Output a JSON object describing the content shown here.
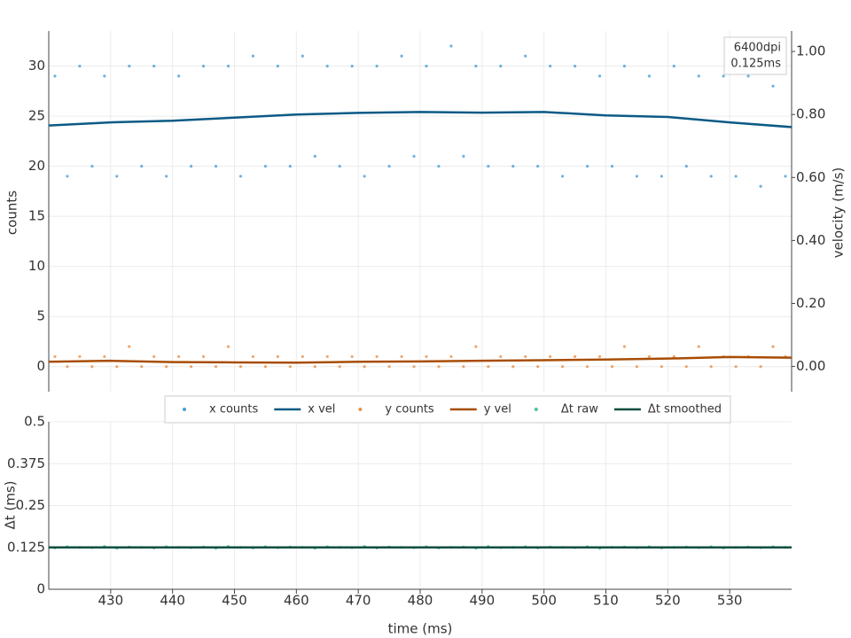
{
  "chart_data": [
    {
      "type": "scatter",
      "ylabel": "counts",
      "y2label": "velocity (m/s)",
      "xlim": [
        420,
        540
      ],
      "xticks": [
        430,
        440,
        450,
        460,
        470,
        480,
        490,
        500,
        510,
        520,
        530
      ],
      "ylim": [
        -2.5,
        33.5
      ],
      "yticks": [
        0,
        5,
        10,
        15,
        20,
        25,
        30
      ],
      "y2lim": [
        -0.08,
        1.065
      ],
      "y2ticks": [
        {
          "value": 0,
          "label": "0.00"
        },
        {
          "value": 0.2,
          "label": "0.20"
        },
        {
          "value": 0.4,
          "label": "0.40"
        },
        {
          "value": 0.6,
          "label": "0.60"
        },
        {
          "value": 0.8,
          "label": "0.80"
        },
        {
          "value": 1,
          "label": "1.00"
        }
      ],
      "grid": true,
      "legend": "bottom",
      "annotations": [
        "6400dpi",
        "0.125ms"
      ],
      "series": [
        {
          "name": "x counts",
          "kind": "markers",
          "color": "#4a9fd6",
          "x": [
            421,
            423,
            425,
            427,
            429,
            431,
            433,
            435,
            437,
            439,
            441,
            443,
            445,
            447,
            449,
            451,
            453,
            455,
            457,
            459,
            461,
            463,
            465,
            467,
            469,
            471,
            473,
            475,
            477,
            479,
            481,
            483,
            485,
            487,
            489,
            491,
            493,
            495,
            497,
            499,
            501,
            503,
            505,
            507,
            509,
            511,
            513,
            515,
            517,
            519,
            521,
            523,
            525,
            527,
            529,
            531,
            533,
            535,
            537,
            539
          ],
          "values": [
            29,
            19,
            30,
            20,
            29,
            19,
            30,
            20,
            30,
            19,
            29,
            20,
            30,
            20,
            30,
            19,
            31,
            20,
            30,
            20,
            31,
            21,
            30,
            20,
            30,
            19,
            30,
            20,
            31,
            21,
            30,
            20,
            32,
            21,
            30,
            20,
            30,
            20,
            31,
            20,
            30,
            19,
            30,
            20,
            29,
            20,
            30,
            19,
            29,
            19,
            30,
            20,
            29,
            19,
            29,
            19,
            29,
            18,
            28,
            19
          ]
        },
        {
          "name": "x vel",
          "kind": "lines",
          "color": "#0b5a85",
          "axis": "y2",
          "x": [
            420,
            430,
            440,
            450,
            460,
            470,
            480,
            490,
            500,
            510,
            520,
            530,
            540
          ],
          "values": [
            0.765,
            0.775,
            0.78,
            0.79,
            0.8,
            0.805,
            0.808,
            0.806,
            0.808,
            0.797,
            0.792,
            0.775,
            0.76
          ]
        },
        {
          "name": "y counts",
          "kind": "markers",
          "color": "#e8914a",
          "x": [
            421,
            423,
            425,
            427,
            429,
            431,
            433,
            435,
            437,
            439,
            441,
            443,
            445,
            447,
            449,
            451,
            453,
            455,
            457,
            459,
            461,
            463,
            465,
            467,
            469,
            471,
            473,
            475,
            477,
            479,
            481,
            483,
            485,
            487,
            489,
            491,
            493,
            495,
            497,
            499,
            501,
            503,
            505,
            507,
            509,
            511,
            513,
            515,
            517,
            519,
            521,
            523,
            525,
            527,
            529,
            531,
            533,
            535,
            537,
            539
          ],
          "values": [
            1,
            0,
            1,
            0,
            1,
            0,
            2,
            0,
            1,
            0,
            1,
            0,
            1,
            0,
            2,
            0,
            1,
            0,
            1,
            0,
            1,
            0,
            1,
            0,
            1,
            0,
            1,
            0,
            1,
            0,
            1,
            0,
            1,
            0,
            2,
            0,
            1,
            0,
            1,
            0,
            1,
            0,
            1,
            0,
            1,
            0,
            2,
            0,
            1,
            0,
            1,
            0,
            2,
            0,
            1,
            0,
            1,
            0,
            2,
            1
          ]
        },
        {
          "name": "y vel",
          "kind": "lines",
          "color": "#a84d05",
          "axis": "y2",
          "x": [
            420,
            430,
            440,
            450,
            460,
            470,
            480,
            490,
            500,
            510,
            520,
            530,
            540
          ],
          "values": [
            0.015,
            0.018,
            0.014,
            0.013,
            0.012,
            0.015,
            0.016,
            0.018,
            0.02,
            0.022,
            0.025,
            0.03,
            0.028
          ]
        }
      ]
    },
    {
      "type": "scatter",
      "xlabel": "time (ms)",
      "ylabel": "Δt (ms)",
      "xlim": [
        420,
        540
      ],
      "xticks": [
        430,
        440,
        450,
        460,
        470,
        480,
        490,
        500,
        510,
        520,
        530
      ],
      "ylim": [
        0,
        0.5
      ],
      "yticks": [
        0,
        0.125,
        0.25,
        0.375,
        0.5
      ],
      "grid": true,
      "series": [
        {
          "name": "Δt raw",
          "kind": "markers",
          "color": "#4fc49a",
          "x": [
            421,
            423,
            425,
            427,
            429,
            431,
            433,
            435,
            437,
            439,
            441,
            443,
            445,
            447,
            449,
            451,
            453,
            455,
            457,
            459,
            461,
            463,
            465,
            467,
            469,
            471,
            473,
            475,
            477,
            479,
            481,
            483,
            485,
            487,
            489,
            491,
            493,
            495,
            497,
            499,
            501,
            503,
            505,
            507,
            509,
            511,
            513,
            515,
            517,
            519,
            521,
            523,
            525,
            527,
            529,
            531,
            533,
            535,
            537,
            539
          ],
          "values": [
            0.123,
            0.127,
            0.125,
            0.124,
            0.128,
            0.122,
            0.126,
            0.125,
            0.123,
            0.127,
            0.125,
            0.124,
            0.126,
            0.122,
            0.128,
            0.125,
            0.123,
            0.127,
            0.124,
            0.126,
            0.125,
            0.122,
            0.127,
            0.125,
            0.124,
            0.128,
            0.123,
            0.126,
            0.125,
            0.124,
            0.127,
            0.123,
            0.125,
            0.126,
            0.122,
            0.128,
            0.124,
            0.125,
            0.127,
            0.123,
            0.126,
            0.125,
            0.124,
            0.127,
            0.122,
            0.125,
            0.126,
            0.124,
            0.127,
            0.123,
            0.125,
            0.126,
            0.124,
            0.127,
            0.123,
            0.125,
            0.126,
            0.124,
            0.127,
            0.125
          ]
        },
        {
          "name": "Δt smoothed",
          "kind": "lines",
          "color": "#0b4f3e",
          "x": [
            420,
            540
          ],
          "values": [
            0.125,
            0.125
          ]
        }
      ]
    }
  ]
}
